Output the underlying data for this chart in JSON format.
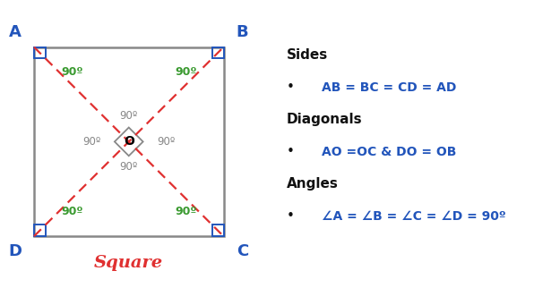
{
  "fig_width": 6.25,
  "fig_height": 3.41,
  "dpi": 100,
  "bg_color": "#ffffff",
  "square_color": "#888888",
  "diagonal_color": "#e03030",
  "corner_color": "#2255bb",
  "angle_color": "#3a9a30",
  "center_label_color": "#888888",
  "title_color": "#e03030",
  "square_label": "Square",
  "center_label": "O",
  "angle_label": "90º",
  "sides_title": "Sides",
  "sides_text": "AB = BC = CD = AD",
  "diagonals_title": "Diagonals",
  "diagonals_text": "AO =OC & DO = OB",
  "angles_title": "Angles",
  "angles_text": "∠A = ∠B = ∠C = ∠D = 90º",
  "text_color_black": "#111111",
  "text_color_blue": "#2255bb"
}
